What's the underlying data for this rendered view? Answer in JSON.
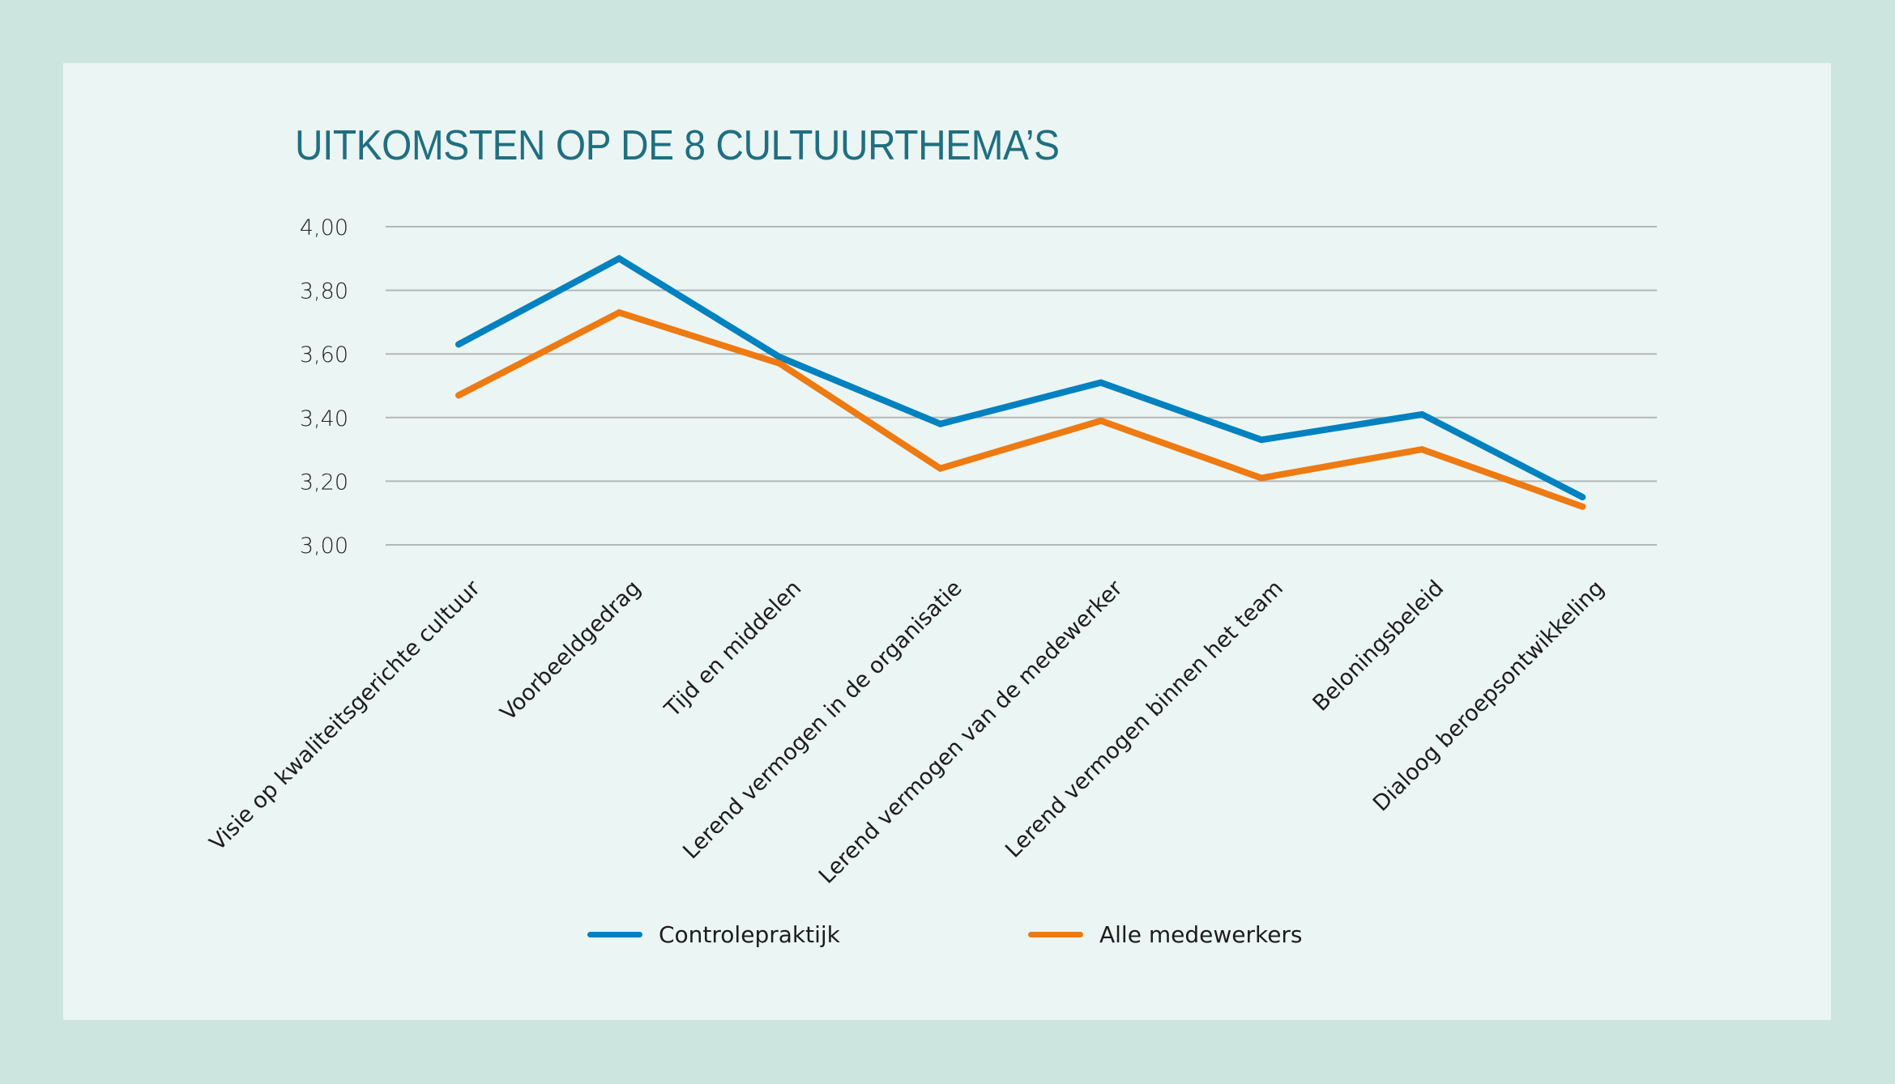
{
  "colors": {
    "outer_background": "#cde5df",
    "panel_background": "#ebf5f3",
    "title": "#1f6f80",
    "gridline": "#b3b8b8",
    "series_1": "#0081c0",
    "series_2": "#ee7a12"
  },
  "chart_data": {
    "type": "line",
    "title": "UITKOMSTEN OP DE 8 CULTUURTHEMA’S",
    "xlabel": "",
    "ylabel": "",
    "ylim": [
      3.0,
      4.0
    ],
    "yticks": [
      "4,00",
      "3,80",
      "3,60",
      "3,40",
      "3,20",
      "3,00"
    ],
    "ytick_values": [
      4.0,
      3.8,
      3.6,
      3.4,
      3.2,
      3.0
    ],
    "grid": true,
    "legend_position": "bottom",
    "categories": [
      "Visie op kwaliteitsgerichte cultuur",
      "Voorbeeldgedrag",
      "Tijd en middelen",
      "Lerend vermogen in de organisatie",
      "Lerend vermogen van de medewerker",
      "Lerend vermogen binnen het team",
      "Beloningsbeleid",
      "Dialoog beroepsontwikkeling"
    ],
    "series": [
      {
        "name": "Controlepraktijk",
        "color": "#0081c0",
        "values": [
          3.63,
          3.9,
          3.59,
          3.38,
          3.51,
          3.33,
          3.41,
          3.15
        ]
      },
      {
        "name": "Alle medewerkers",
        "color": "#ee7a12",
        "values": [
          3.47,
          3.73,
          3.57,
          3.24,
          3.39,
          3.21,
          3.3,
          3.12
        ]
      }
    ]
  }
}
